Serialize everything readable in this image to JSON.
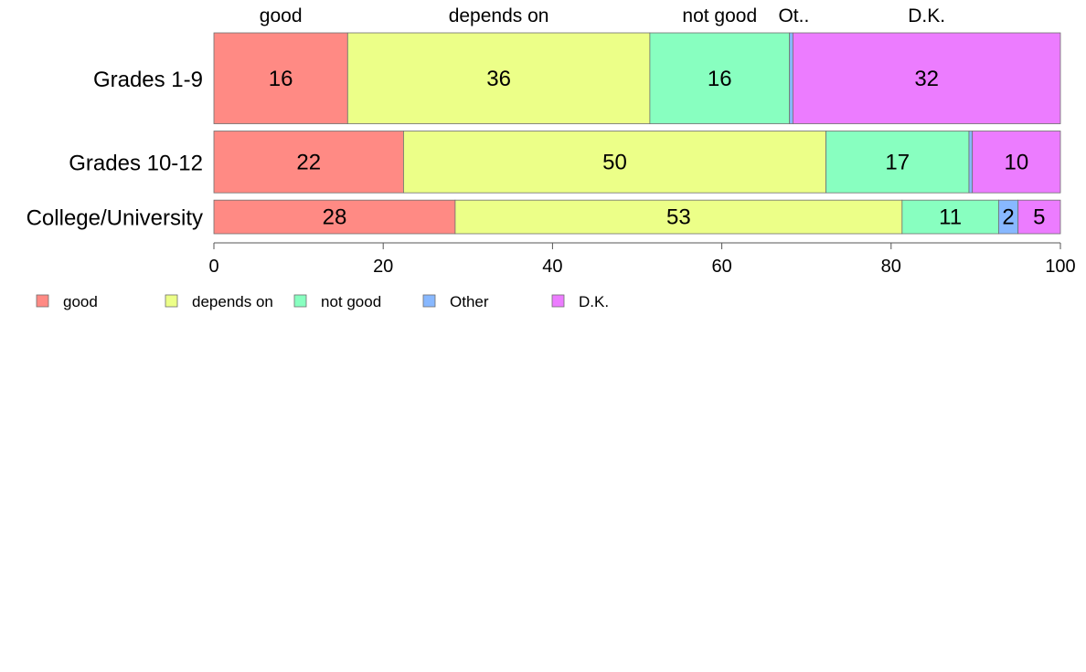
{
  "chart_data": {
    "type": "bar",
    "orientation": "horizontal",
    "stacked": true,
    "categories": [
      "Grades 1-9",
      "Grades 10-12",
      "College/University"
    ],
    "bar_weights": [
      100,
      68,
      37
    ],
    "series": [
      {
        "name": "good",
        "short_label": "good",
        "color": "#FF8A84",
        "values": [
          15.8,
          22.4,
          28.5
        ],
        "labels": [
          "16",
          "22",
          "28"
        ]
      },
      {
        "name": "depends on",
        "short_label": "depends on",
        "color": "#ECFF88",
        "values": [
          35.7,
          49.9,
          52.8
        ],
        "labels": [
          "36",
          "50",
          "53"
        ]
      },
      {
        "name": "not good",
        "short_label": "not good",
        "color": "#88FFC0",
        "values": [
          16.5,
          16.9,
          11.4
        ],
        "labels": [
          "16",
          "17",
          "11"
        ]
      },
      {
        "name": "Other",
        "short_label": "Ot..",
        "color": "#88B8FF",
        "values": [
          0.4,
          0.4,
          2.3
        ],
        "labels": [
          "",
          "",
          "2"
        ]
      },
      {
        "name": "D.K.",
        "short_label": "D.K.",
        "color": "#EC7CFF",
        "values": [
          31.6,
          10.4,
          5.0
        ],
        "labels": [
          "32",
          "10",
          "5"
        ]
      }
    ],
    "xlim": [
      0,
      100
    ],
    "xticks": [
      0,
      20,
      40,
      60,
      80,
      100
    ],
    "legend_position": "bottom-left",
    "grid": false
  }
}
